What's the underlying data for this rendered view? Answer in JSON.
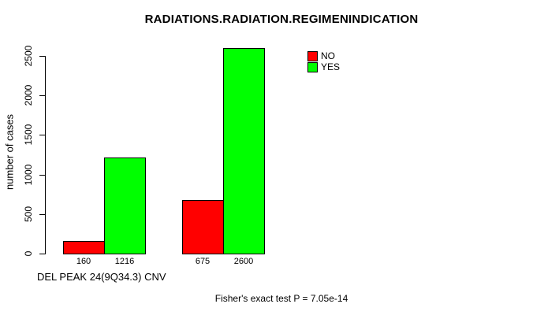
{
  "chart_data": {
    "type": "bar",
    "title": "RADIATIONS.RADIATION.REGIMENINDICATION",
    "xlabel": "DEL PEAK 24(9Q34.3) CNV",
    "ylabel": "number of cases",
    "ylim": [
      0,
      2500
    ],
    "yticks": [
      0,
      500,
      1000,
      1500,
      2000,
      2500
    ],
    "grid": false,
    "legend_position": "top-right",
    "bar_border_color": "#000000",
    "series": [
      {
        "name": "NO",
        "color": "#ff0000",
        "values": [
          160,
          675
        ]
      },
      {
        "name": "YES",
        "color": "#00ff00",
        "values": [
          1216,
          2600
        ]
      }
    ],
    "annotation": "Fisher's exact test P = 7.05e-14"
  }
}
